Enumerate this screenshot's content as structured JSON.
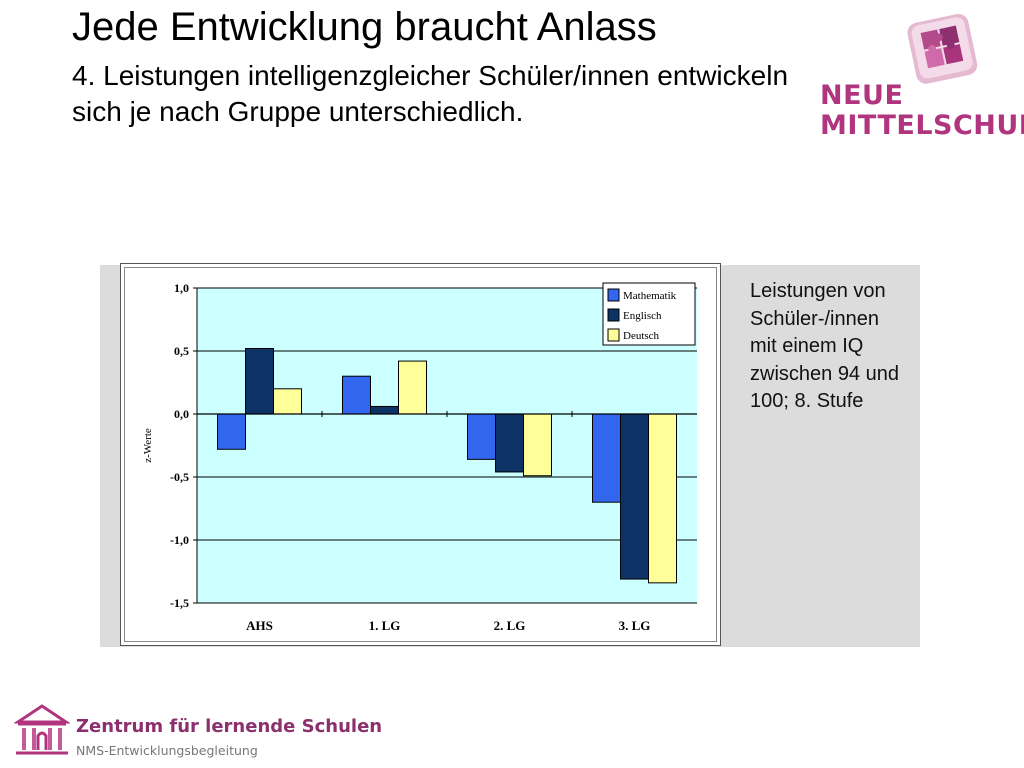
{
  "slide": {
    "title": "Jede Entwicklung braucht Anlass",
    "subtitle": "4. Leistungen intelligenzgleicher Schüler/innen entwickeln sich je nach Gruppe unterschiedlich.",
    "caption": "Leistungen von Schüler-/innen mit einem IQ zwischen 94 und 100; 8. Stufe"
  },
  "logo": {
    "line1": "NEUE",
    "line2": "MITTELSCHULE",
    "color": "#b0347e",
    "icon": "puzzle-icon"
  },
  "footer": {
    "title": "Zentrum für lernende Schulen",
    "subtitle": "NMS-Entwicklungsbegleitung",
    "icon": "building-columns-icon",
    "color": "#8b2f6d"
  },
  "chart_data": {
    "type": "bar",
    "categories": [
      "AHS",
      "1. LG",
      "2. LG",
      "3. LG"
    ],
    "series": [
      {
        "name": "Mathematik",
        "values": [
          -0.28,
          0.3,
          -0.36,
          -0.7
        ],
        "color": "#3366ee"
      },
      {
        "name": "Englisch",
        "values": [
          0.52,
          0.06,
          -0.46,
          -1.31
        ],
        "color": "#0d3266"
      },
      {
        "name": "Deutsch",
        "values": [
          0.2,
          0.42,
          -0.49,
          -1.34
        ],
        "color": "#ffff99"
      }
    ],
    "ylabel": "z-Werte",
    "ylim": [
      -1.5,
      1.0
    ],
    "yticks": [
      1.0,
      0.5,
      0.0,
      -0.5,
      -1.0,
      -1.5
    ],
    "ytick_labels": [
      "1,0",
      "0,5",
      "0,0",
      "-0,5",
      "-1,0",
      "-1,5"
    ],
    "grid": true,
    "legend": "top-right",
    "plot_background": "#ccffff"
  }
}
